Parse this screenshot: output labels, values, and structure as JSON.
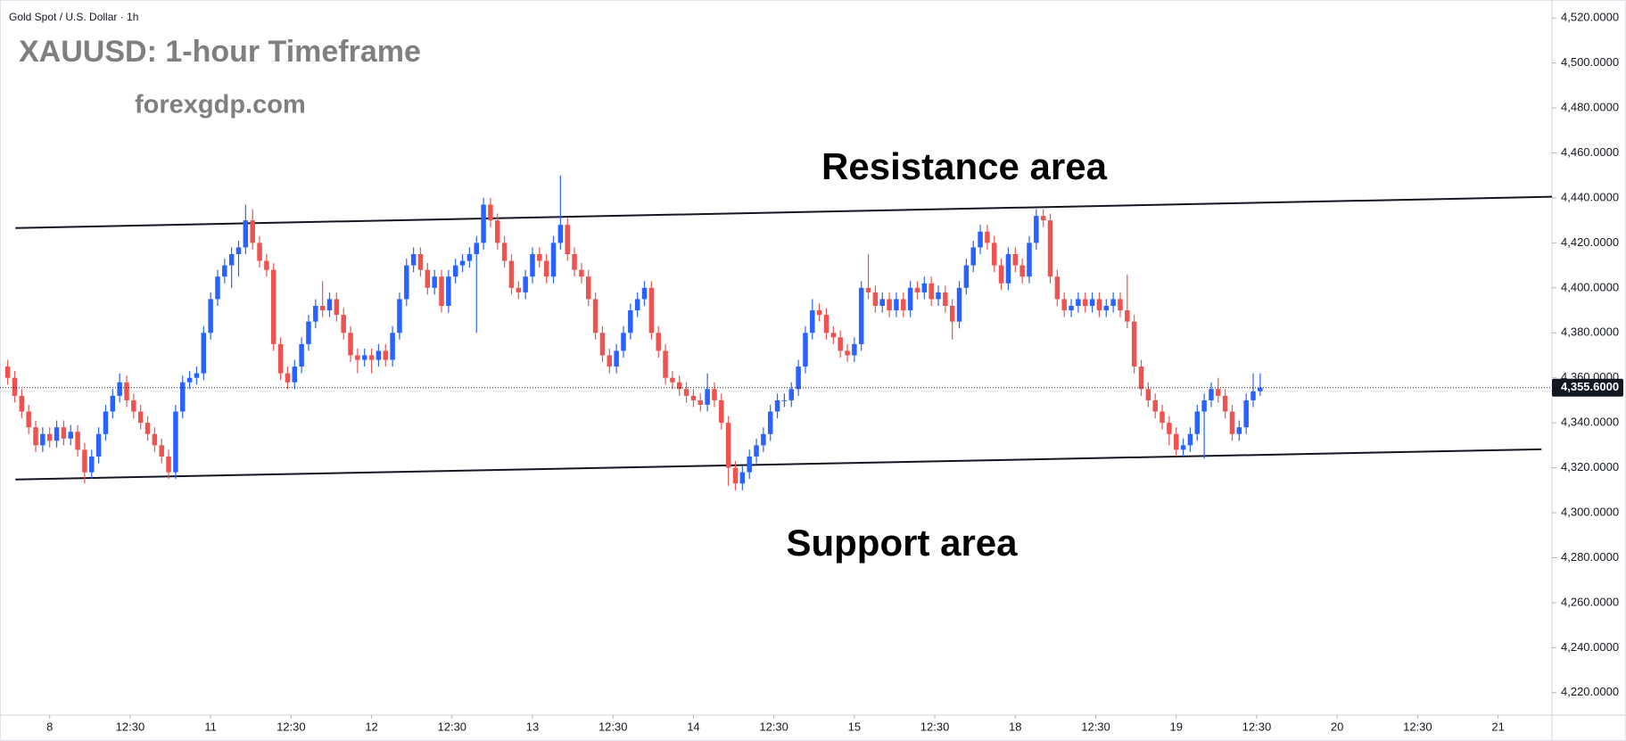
{
  "chart_data": {
    "type": "candlestick",
    "header": "Gold Spot / U.S. Dollar · 1h",
    "title": "XAUUSD: 1-hour Timeframe",
    "subtitle": "forexgdp.com",
    "up_color": "#2962ff",
    "down_color": "#ef5350",
    "grid": false,
    "xlim": [
      -1.1,
      220.7
    ],
    "ylim": [
      4210,
      4528
    ],
    "xticks": [
      {
        "value": 6,
        "label": "8"
      },
      {
        "value": 17.5,
        "label": "12:30"
      },
      {
        "value": 29,
        "label": "11"
      },
      {
        "value": 40.5,
        "label": "12:30"
      },
      {
        "value": 52,
        "label": "12"
      },
      {
        "value": 63.5,
        "label": "12:30"
      },
      {
        "value": 75,
        "label": "13"
      },
      {
        "value": 86.5,
        "label": "12:30"
      },
      {
        "value": 98,
        "label": "14"
      },
      {
        "value": 109.5,
        "label": "12:30"
      },
      {
        "value": 121,
        "label": "15"
      },
      {
        "value": 132.5,
        "label": "12:30"
      },
      {
        "value": 144,
        "label": "18"
      },
      {
        "value": 155.5,
        "label": "12:30"
      },
      {
        "value": 167,
        "label": "19"
      },
      {
        "value": 178.5,
        "label": "12:30"
      },
      {
        "value": 190,
        "label": "20"
      },
      {
        "value": 201.5,
        "label": "12:30"
      },
      {
        "value": 213,
        "label": "21"
      }
    ],
    "yticks": [
      {
        "value": 4220,
        "label": "4,220.0000"
      },
      {
        "value": 4240,
        "label": "4,240.0000"
      },
      {
        "value": 4260,
        "label": "4,260.0000"
      },
      {
        "value": 4280,
        "label": "4,280.0000"
      },
      {
        "value": 4300,
        "label": "4,300.0000"
      },
      {
        "value": 4320,
        "label": "4,320.0000"
      },
      {
        "value": 4340,
        "label": "4,340.0000"
      },
      {
        "value": 4360,
        "label": "4,360.0000"
      },
      {
        "value": 4380,
        "label": "4,380.0000"
      },
      {
        "value": 4400,
        "label": "4,400.0000"
      },
      {
        "value": 4420,
        "label": "4,420.0000"
      },
      {
        "value": 4440,
        "label": "4,440.0000"
      },
      {
        "value": 4460,
        "label": "4,460.0000"
      },
      {
        "value": 4480,
        "label": "4,480.0000"
      },
      {
        "value": 4500,
        "label": "4,500.0000"
      },
      {
        "value": 4520,
        "label": "4,520.0000"
      }
    ],
    "last_price": {
      "value": 4355.6,
      "label": "4,355.6000"
    },
    "resistance": {
      "label": "Resistance area",
      "x": [
        1.1,
        220.7
      ],
      "y": [
        4426.6,
        4440.5
      ]
    },
    "support": {
      "label": "Support area",
      "x": [
        1.1,
        219.2
      ],
      "y": [
        4314.8,
        4328.2
      ]
    },
    "candles": [
      [
        4365,
        4368,
        4357,
        4360
      ],
      [
        4360,
        4363,
        4349,
        4352
      ],
      [
        4352,
        4355,
        4342,
        4345
      ],
      [
        4345,
        4348,
        4335,
        4338
      ],
      [
        4338,
        4341,
        4327,
        4330
      ],
      [
        4330,
        4338,
        4327,
        4335
      ],
      [
        4335,
        4338,
        4329,
        4332
      ],
      [
        4332,
        4341,
        4329,
        4338
      ],
      [
        4338,
        4341,
        4330,
        4333
      ],
      [
        4333,
        4339,
        4330,
        4336
      ],
      [
        4336,
        4339,
        4325,
        4328
      ],
      [
        4328,
        4331,
        4313,
        4318
      ],
      [
        4318,
        4328,
        4315,
        4325
      ],
      [
        4325,
        4338,
        4322,
        4335
      ],
      [
        4335,
        4348,
        4332,
        4345
      ],
      [
        4345,
        4355,
        4342,
        4352
      ],
      [
        4352,
        4362,
        4349,
        4358
      ],
      [
        4358,
        4361,
        4347,
        4350
      ],
      [
        4350,
        4353,
        4342,
        4345
      ],
      [
        4345,
        4348,
        4337,
        4340
      ],
      [
        4340,
        4343,
        4332,
        4335
      ],
      [
        4335,
        4338,
        4327,
        4330
      ],
      [
        4330,
        4333,
        4322,
        4325
      ],
      [
        4325,
        4328,
        4315,
        4318
      ],
      [
        4318,
        4348,
        4315,
        4345
      ],
      [
        4345,
        4361,
        4342,
        4358
      ],
      [
        4358,
        4363,
        4355,
        4360
      ],
      [
        4360,
        4365,
        4357,
        4362
      ],
      [
        4362,
        4383,
        4359,
        4380
      ],
      [
        4380,
        4398,
        4377,
        4395
      ],
      [
        4395,
        4408,
        4392,
        4405
      ],
      [
        4405,
        4413,
        4402,
        4410
      ],
      [
        4410,
        4418,
        4400,
        4415
      ],
      [
        4415,
        4421,
        4405,
        4418
      ],
      [
        4418,
        4437,
        4415,
        4430
      ],
      [
        4430,
        4435,
        4417,
        4420
      ],
      [
        4420,
        4423,
        4409,
        4412
      ],
      [
        4412,
        4415,
        4405,
        4408
      ],
      [
        4408,
        4411,
        4372,
        4375
      ],
      [
        4375,
        4378,
        4359,
        4362
      ],
      [
        4362,
        4365,
        4355,
        4358
      ],
      [
        4358,
        4368,
        4355,
        4365
      ],
      [
        4365,
        4378,
        4362,
        4375
      ],
      [
        4375,
        4388,
        4372,
        4385
      ],
      [
        4385,
        4395,
        4382,
        4392
      ],
      [
        4392,
        4403,
        4387,
        4390
      ],
      [
        4390,
        4398,
        4387,
        4395
      ],
      [
        4395,
        4398,
        4385,
        4388
      ],
      [
        4388,
        4391,
        4377,
        4380
      ],
      [
        4380,
        4383,
        4367,
        4370
      ],
      [
        4370,
        4373,
        4362,
        4368
      ],
      [
        4368,
        4373,
        4365,
        4370
      ],
      [
        4370,
        4373,
        4362,
        4368
      ],
      [
        4368,
        4375,
        4365,
        4372
      ],
      [
        4372,
        4375,
        4365,
        4368
      ],
      [
        4368,
        4383,
        4365,
        4380
      ],
      [
        4380,
        4398,
        4377,
        4395
      ],
      [
        4395,
        4413,
        4392,
        4410
      ],
      [
        4410,
        4418,
        4407,
        4415
      ],
      [
        4415,
        4418,
        4405,
        4408
      ],
      [
        4408,
        4411,
        4397,
        4400
      ],
      [
        4400,
        4408,
        4397,
        4405
      ],
      [
        4405,
        4408,
        4389,
        4392
      ],
      [
        4392,
        4408,
        4389,
        4405
      ],
      [
        4405,
        4413,
        4402,
        4410
      ],
      [
        4410,
        4415,
        4407,
        4412
      ],
      [
        4412,
        4418,
        4409,
        4415
      ],
      [
        4415,
        4423,
        4380,
        4420
      ],
      [
        4420,
        4440,
        4417,
        4437
      ],
      [
        4437,
        4440,
        4427,
        4430
      ],
      [
        4430,
        4433,
        4417,
        4420
      ],
      [
        4420,
        4423,
        4409,
        4412
      ],
      [
        4412,
        4415,
        4397,
        4400
      ],
      [
        4400,
        4403,
        4395,
        4398
      ],
      [
        4398,
        4408,
        4395,
        4405
      ],
      [
        4405,
        4418,
        4402,
        4415
      ],
      [
        4415,
        4418,
        4409,
        4412
      ],
      [
        4412,
        4415,
        4402,
        4405
      ],
      [
        4405,
        4423,
        4402,
        4420
      ],
      [
        4420,
        4450,
        4417,
        4428
      ],
      [
        4428,
        4431,
        4412,
        4415
      ],
      [
        4415,
        4418,
        4405,
        4408
      ],
      [
        4408,
        4411,
        4402,
        4405
      ],
      [
        4405,
        4408,
        4392,
        4395
      ],
      [
        4395,
        4398,
        4377,
        4380
      ],
      [
        4380,
        4383,
        4367,
        4370
      ],
      [
        4370,
        4373,
        4362,
        4365
      ],
      [
        4365,
        4375,
        4362,
        4372
      ],
      [
        4372,
        4383,
        4369,
        4380
      ],
      [
        4380,
        4393,
        4377,
        4390
      ],
      [
        4390,
        4398,
        4387,
        4395
      ],
      [
        4395,
        4403,
        4392,
        4400
      ],
      [
        4400,
        4403,
        4377,
        4380
      ],
      [
        4380,
        4383,
        4369,
        4372
      ],
      [
        4372,
        4375,
        4357,
        4360
      ],
      [
        4360,
        4363,
        4355,
        4358
      ],
      [
        4358,
        4361,
        4352,
        4355
      ],
      [
        4355,
        4358,
        4349,
        4352
      ],
      [
        4352,
        4355,
        4347,
        4350
      ],
      [
        4350,
        4353,
        4345,
        4348
      ],
      [
        4348,
        4362,
        4345,
        4355
      ],
      [
        4355,
        4358,
        4347,
        4350
      ],
      [
        4350,
        4353,
        4337,
        4340
      ],
      [
        4340,
        4343,
        4312,
        4320
      ],
      [
        4320,
        4323,
        4310,
        4313
      ],
      [
        4313,
        4321,
        4310,
        4318
      ],
      [
        4318,
        4328,
        4315,
        4325
      ],
      [
        4325,
        4333,
        4322,
        4330
      ],
      [
        4330,
        4338,
        4327,
        4335
      ],
      [
        4335,
        4348,
        4332,
        4345
      ],
      [
        4345,
        4353,
        4342,
        4350
      ],
      [
        4350,
        4353,
        4347,
        4350
      ],
      [
        4350,
        4358,
        4347,
        4355
      ],
      [
        4355,
        4368,
        4352,
        4365
      ],
      [
        4365,
        4383,
        4362,
        4380
      ],
      [
        4380,
        4395,
        4377,
        4390
      ],
      [
        4390,
        4393,
        4385,
        4388
      ],
      [
        4388,
        4391,
        4377,
        4380
      ],
      [
        4380,
        4383,
        4375,
        4378
      ],
      [
        4378,
        4381,
        4369,
        4372
      ],
      [
        4372,
        4375,
        4367,
        4370
      ],
      [
        4370,
        4378,
        4367,
        4375
      ],
      [
        4375,
        4403,
        4372,
        4400
      ],
      [
        4400,
        4415,
        4395,
        4398
      ],
      [
        4398,
        4401,
        4389,
        4392
      ],
      [
        4392,
        4398,
        4389,
        4395
      ],
      [
        4395,
        4398,
        4387,
        4390
      ],
      [
        4390,
        4398,
        4387,
        4395
      ],
      [
        4395,
        4398,
        4387,
        4390
      ],
      [
        4390,
        4403,
        4387,
        4400
      ],
      [
        4400,
        4403,
        4395,
        4398
      ],
      [
        4398,
        4405,
        4395,
        4402
      ],
      [
        4402,
        4405,
        4392,
        4395
      ],
      [
        4395,
        4401,
        4392,
        4398
      ],
      [
        4398,
        4401,
        4389,
        4392
      ],
      [
        4392,
        4395,
        4377,
        4385
      ],
      [
        4385,
        4403,
        4382,
        4400
      ],
      [
        4400,
        4413,
        4397,
        4410
      ],
      [
        4410,
        4421,
        4407,
        4418
      ],
      [
        4418,
        4428,
        4415,
        4425
      ],
      [
        4425,
        4428,
        4417,
        4420
      ],
      [
        4420,
        4423,
        4407,
        4410
      ],
      [
        4410,
        4413,
        4399,
        4402
      ],
      [
        4402,
        4418,
        4399,
        4415
      ],
      [
        4415,
        4418,
        4407,
        4410
      ],
      [
        4410,
        4413,
        4402,
        4405
      ],
      [
        4405,
        4423,
        4402,
        4420
      ],
      [
        4420,
        4435,
        4417,
        4432
      ],
      [
        4432,
        4435,
        4427,
        4430
      ],
      [
        4430,
        4433,
        4402,
        4405
      ],
      [
        4405,
        4408,
        4392,
        4395
      ],
      [
        4395,
        4398,
        4387,
        4390
      ],
      [
        4390,
        4395,
        4387,
        4392
      ],
      [
        4392,
        4398,
        4389,
        4395
      ],
      [
        4395,
        4398,
        4389,
        4392
      ],
      [
        4392,
        4398,
        4389,
        4395
      ],
      [
        4395,
        4398,
        4387,
        4390
      ],
      [
        4390,
        4395,
        4387,
        4392
      ],
      [
        4392,
        4398,
        4389,
        4395
      ],
      [
        4395,
        4398,
        4387,
        4390
      ],
      [
        4390,
        4406,
        4382,
        4385
      ],
      [
        4385,
        4388,
        4362,
        4365
      ],
      [
        4365,
        4368,
        4352,
        4355
      ],
      [
        4355,
        4358,
        4347,
        4350
      ],
      [
        4350,
        4353,
        4342,
        4345
      ],
      [
        4345,
        4348,
        4337,
        4340
      ],
      [
        4340,
        4343,
        4330,
        4335
      ],
      [
        4335,
        4338,
        4325,
        4328
      ],
      [
        4328,
        4333,
        4325,
        4330
      ],
      [
        4330,
        4338,
        4327,
        4335
      ],
      [
        4335,
        4348,
        4332,
        4345
      ],
      [
        4345,
        4353,
        4324,
        4350
      ],
      [
        4350,
        4358,
        4347,
        4355
      ],
      [
        4355,
        4360,
        4349,
        4352
      ],
      [
        4352,
        4355,
        4342,
        4345
      ],
      [
        4345,
        4348,
        4332,
        4335
      ],
      [
        4335,
        4341,
        4332,
        4338
      ],
      [
        4338,
        4353,
        4335,
        4350
      ],
      [
        4350,
        4362,
        4347,
        4354
      ],
      [
        4354,
        4362,
        4352,
        4355.6
      ]
    ]
  }
}
